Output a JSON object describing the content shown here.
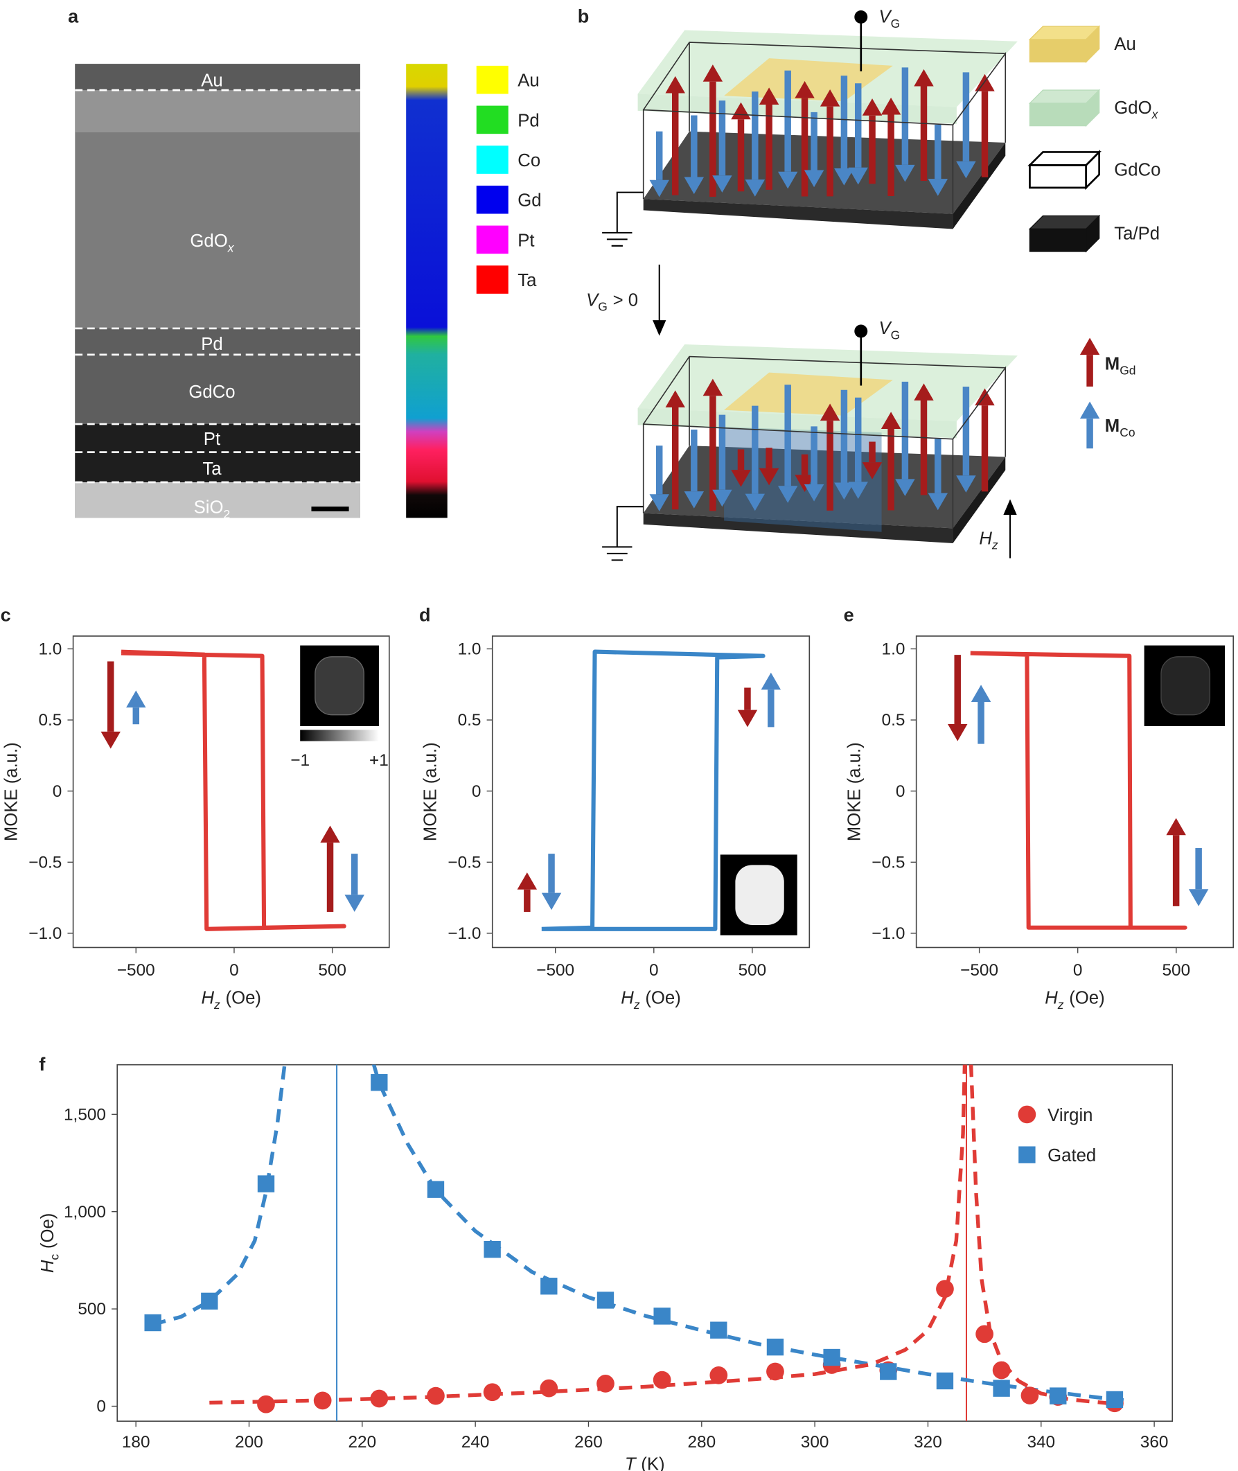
{
  "panel_a": {
    "label": "a",
    "layers": [
      {
        "main": "Au"
      },
      {
        "main": "GdO",
        "sub": "x"
      },
      {
        "main": "Pd"
      },
      {
        "main": "GdCo"
      },
      {
        "main": "Pt"
      },
      {
        "main": "Ta"
      },
      {
        "main": "SiO",
        "sub": "2"
      }
    ],
    "elements": [
      {
        "name": "Au",
        "color": "#ffff00"
      },
      {
        "name": "Pd",
        "color": "#22dd22"
      },
      {
        "name": "Co",
        "color": "#00ffff"
      },
      {
        "name": "Gd",
        "color": "#0000ee"
      },
      {
        "name": "Pt",
        "color": "#ff00ff"
      },
      {
        "name": "Ta",
        "color": "#ff0000"
      }
    ]
  },
  "panel_b": {
    "label": "b",
    "gate_top": {
      "main": "V",
      "sub": "G"
    },
    "gate_bottom": {
      "main": "V",
      "sub": "G"
    },
    "step": {
      "main": "V",
      "sub": "G",
      "unit": "> 0"
    },
    "legend": [
      {
        "main": "Au"
      },
      {
        "main": "GdO",
        "sub": "x"
      },
      {
        "main": "GdCo"
      },
      {
        "main": "Ta/Pd"
      }
    ],
    "moments": [
      {
        "main": "M",
        "sub": "Gd"
      },
      {
        "main": "M",
        "sub": "Co"
      }
    ],
    "field": {
      "main": "H",
      "sub": "z"
    }
  },
  "chart_data": [
    {
      "type": "line",
      "panel_label": "c",
      "x_label": {
        "main": "H",
        "sub": "z",
        "unit": "(Oe)"
      },
      "y_label": "MOKE (a.u.)",
      "xlim": [
        -820,
        790
      ],
      "ylim": [
        -1.1,
        1.09
      ],
      "xticks": [
        {
          "value": -500,
          "label": "−500"
        },
        0,
        500
      ],
      "yticks": [
        {
          "value": -1,
          "label": "−1.0"
        },
        {
          "value": -0.5,
          "label": "−0.5"
        },
        0,
        0.5,
        {
          "value": 1,
          "label": "1.0"
        }
      ],
      "series": [
        {
          "color": "#e03b36",
          "x": [
            -575,
            143,
            152,
            560,
            -140,
            -152,
            -575
          ],
          "values": [
            0.97,
            0.95,
            -0.96,
            -0.95,
            -0.97,
            0.96,
            0.98
          ]
        }
      ],
      "colorbar_labels": [
        {
          "value": -1,
          "label": "−1"
        },
        {
          "value": 1,
          "label": "+1"
        }
      ]
    },
    {
      "type": "line",
      "panel_label": "d",
      "x_label": {
        "main": "H",
        "sub": "z",
        "unit": "(Oe)"
      },
      "y_label": "MOKE (a.u.)",
      "xlim": [
        -820,
        790
      ],
      "ylim": [
        -1.1,
        1.09
      ],
      "xticks": [
        {
          "value": -500,
          "label": "−500"
        },
        0,
        500
      ],
      "yticks": [
        {
          "value": -1,
          "label": "−1.0"
        },
        {
          "value": -0.5,
          "label": "−0.5"
        },
        0,
        0.5,
        {
          "value": 1,
          "label": "1.0"
        }
      ],
      "series": [
        {
          "color": "#3a86c8",
          "x": [
            -570,
            312,
            322,
            555,
            -300,
            -312,
            -570
          ],
          "values": [
            -0.97,
            -0.97,
            0.94,
            0.95,
            0.98,
            -0.96,
            -0.97
          ]
        }
      ]
    },
    {
      "type": "line",
      "panel_label": "e",
      "x_label": {
        "main": "H",
        "sub": "z",
        "unit": "(Oe)"
      },
      "y_label": "MOKE (a.u.)",
      "xlim": [
        -820,
        790
      ],
      "ylim": [
        -1.1,
        1.09
      ],
      "xticks": [
        {
          "value": -500,
          "label": "−500"
        },
        0,
        500
      ],
      "yticks": [
        {
          "value": -1,
          "label": "−1.0"
        },
        {
          "value": -0.5,
          "label": "−0.5"
        },
        0,
        0.5,
        {
          "value": 1,
          "label": "1.0"
        }
      ],
      "series": [
        {
          "color": "#e03b36",
          "x": [
            -545,
            262,
            268,
            545,
            -250,
            -258,
            -545
          ],
          "values": [
            0.97,
            0.95,
            -0.96,
            -0.96,
            -0.96,
            0.96,
            0.97
          ]
        }
      ]
    },
    {
      "type": "scatter",
      "panel_label": "f",
      "x_label": {
        "main": "T",
        "unit": "(K)"
      },
      "y_label": {
        "main": "H",
        "sub": "c",
        "unit": "(Oe)"
      },
      "xlim": [
        176.7,
        363.2
      ],
      "ylim": [
        -77,
        1755
      ],
      "xticks": [
        180,
        200,
        220,
        240,
        260,
        280,
        300,
        320,
        340,
        360
      ],
      "yticks": [
        0,
        500,
        {
          "value": 1000,
          "label": "1,000"
        },
        {
          "value": 1500,
          "label": "1,500"
        }
      ],
      "legend": "upper right",
      "series": [
        {
          "name": "Virgin",
          "color": "#e03b36",
          "marker": "circle",
          "x": [
            203,
            213,
            223,
            233,
            243,
            253,
            263,
            273,
            283,
            293,
            303,
            313,
            323,
            330,
            333,
            338,
            343,
            353
          ],
          "values": [
            10,
            29,
            39,
            53,
            72,
            92,
            116,
            135,
            159,
            178,
            212,
            185,
            603,
            371,
            185,
            55,
            48,
            15
          ]
        },
        {
          "name": "Gated",
          "color": "#3a86c8",
          "marker": "square",
          "x": [
            183,
            193,
            203,
            223,
            233,
            243,
            253,
            263,
            273,
            283,
            293,
            303,
            313,
            323,
            333,
            343,
            353
          ],
          "values": [
            429,
            540,
            1143,
            1664,
            1114,
            806,
            617,
            545,
            463,
            391,
            304,
            251,
            178,
            130,
            92,
            53,
            34
          ]
        }
      ],
      "fits": [
        {
          "color": "#3a86c8",
          "x": [
            183,
            188,
            193,
            198,
            201,
            203,
            205,
            206.3,
            214,
            222,
            223,
            228,
            233,
            240,
            250,
            260,
            270,
            280,
            290,
            300,
            310,
            320,
            330,
            340,
            350,
            355
          ],
          "values": [
            420,
            460,
            540,
            680,
            850,
            1100,
            1450,
            1760,
            null,
            1760,
            1660,
            1350,
            1110,
            900,
            690,
            560,
            465,
            390,
            320,
            265,
            215,
            165,
            120,
            80,
            45,
            30
          ]
        },
        {
          "color": "#e03b36",
          "x": [
            193,
            210,
            230,
            250,
            270,
            290,
            300,
            310,
            316,
            320,
            323,
            325,
            326.2,
            326.5,
            327,
            327.6,
            328.5,
            329.5,
            331,
            333,
            336,
            340,
            345,
            353
          ],
          "values": [
            18,
            28,
            45,
            70,
            100,
            140,
            165,
            215,
            290,
            390,
            560,
            850,
            1400,
            1760,
            null,
            1760,
            1100,
            650,
            380,
            230,
            130,
            65,
            35,
            12
          ]
        }
      ],
      "vlines": [
        {
          "value": 215.5,
          "color": "#3a86c8"
        },
        {
          "value": 326.8,
          "color": "#e03b36"
        }
      ]
    }
  ]
}
